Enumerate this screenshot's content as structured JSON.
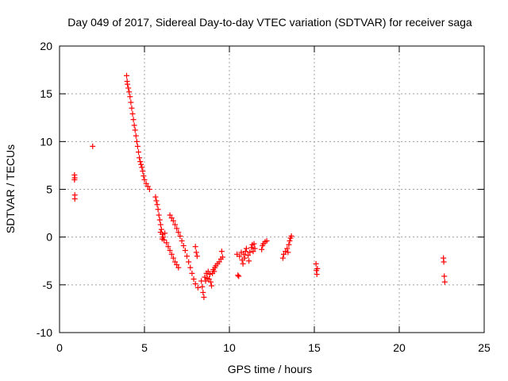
{
  "chart_data": {
    "type": "scatter",
    "title": "Day 049 of 2017, Sidereal Day-to-day VTEC variation (SDTVAR) for receiver saga",
    "xlabel": "GPS time / hours",
    "ylabel": "SDTVAR / TECUs",
    "xlim": [
      0,
      25
    ],
    "ylim": [
      -10,
      20
    ],
    "xticks": [
      0,
      5,
      10,
      15,
      20,
      25
    ],
    "yticks": [
      -10,
      -5,
      0,
      5,
      10,
      15,
      20
    ],
    "grid": true,
    "marker": "+",
    "color": "#ff0000",
    "series": [
      {
        "name": "SDTVAR",
        "points": [
          [
            0.88,
            6.5
          ],
          [
            0.88,
            6.0
          ],
          [
            0.9,
            6.2
          ],
          [
            0.9,
            4.4
          ],
          [
            0.9,
            4.0
          ],
          [
            1.95,
            9.5
          ],
          [
            3.95,
            16.9
          ],
          [
            3.98,
            16.3
          ],
          [
            4.0,
            16.0
          ],
          [
            4.05,
            15.6
          ],
          [
            4.1,
            15.2
          ],
          [
            4.15,
            14.7
          ],
          [
            4.2,
            14.1
          ],
          [
            4.25,
            13.5
          ],
          [
            4.3,
            12.9
          ],
          [
            4.35,
            12.3
          ],
          [
            4.4,
            11.7
          ],
          [
            4.45,
            11.2
          ],
          [
            4.5,
            10.6
          ],
          [
            4.55,
            10.0
          ],
          [
            4.6,
            9.5
          ],
          [
            4.65,
            8.9
          ],
          [
            4.7,
            8.3
          ],
          [
            4.75,
            7.9
          ],
          [
            4.8,
            7.6
          ],
          [
            4.85,
            7.3
          ],
          [
            4.9,
            6.9
          ],
          [
            4.95,
            6.4
          ],
          [
            5.0,
            6.0
          ],
          [
            5.1,
            5.6
          ],
          [
            5.2,
            5.3
          ],
          [
            5.3,
            5.0
          ],
          [
            5.65,
            4.2
          ],
          [
            5.7,
            3.8
          ],
          [
            5.75,
            3.4
          ],
          [
            5.8,
            2.9
          ],
          [
            5.85,
            2.3
          ],
          [
            5.9,
            1.8
          ],
          [
            5.95,
            1.3
          ],
          [
            6.0,
            0.8
          ],
          [
            6.05,
            0.3
          ],
          [
            6.1,
            0.0
          ],
          [
            6.15,
            -0.3
          ],
          [
            5.95,
            0.5
          ],
          [
            6.05,
            -0.2
          ],
          [
            6.2,
            0.4
          ],
          [
            6.3,
            -0.6
          ],
          [
            6.4,
            -1.0
          ],
          [
            6.5,
            -1.4
          ],
          [
            6.6,
            -1.8
          ],
          [
            6.7,
            -2.2
          ],
          [
            6.8,
            -2.6
          ],
          [
            6.9,
            -2.9
          ],
          [
            7.0,
            -3.2
          ],
          [
            6.5,
            2.3
          ],
          [
            6.6,
            2.0
          ],
          [
            6.7,
            1.7
          ],
          [
            6.8,
            1.3
          ],
          [
            6.9,
            0.9
          ],
          [
            7.0,
            0.5
          ],
          [
            7.1,
            0.1
          ],
          [
            7.2,
            -0.4
          ],
          [
            7.3,
            -0.9
          ],
          [
            7.4,
            -1.4
          ],
          [
            7.5,
            -2.0
          ],
          [
            7.6,
            -2.6
          ],
          [
            7.7,
            -3.2
          ],
          [
            7.8,
            -3.8
          ],
          [
            7.9,
            -4.4
          ],
          [
            8.0,
            -4.9
          ],
          [
            8.0,
            -1.0
          ],
          [
            8.05,
            -1.6
          ],
          [
            8.1,
            -2.0
          ],
          [
            8.15,
            -5.3
          ],
          [
            8.35,
            -4.6
          ],
          [
            8.4,
            -5.2
          ],
          [
            8.45,
            -5.8
          ],
          [
            8.5,
            -6.3
          ],
          [
            8.55,
            -4.2
          ],
          [
            8.6,
            -4.6
          ],
          [
            8.65,
            -3.8
          ],
          [
            8.7,
            -4.3
          ],
          [
            8.75,
            -3.6
          ],
          [
            8.8,
            -4.4
          ],
          [
            8.85,
            -3.9
          ],
          [
            8.9,
            -4.7
          ],
          [
            8.95,
            -5.1
          ],
          [
            9.0,
            -3.8
          ],
          [
            9.05,
            -3.4
          ],
          [
            9.1,
            -3.6
          ],
          [
            9.15,
            -3.2
          ],
          [
            9.2,
            -3.0
          ],
          [
            9.3,
            -2.8
          ],
          [
            9.4,
            -2.6
          ],
          [
            9.5,
            -2.3
          ],
          [
            9.55,
            -1.5
          ],
          [
            9.6,
            -2.1
          ],
          [
            10.45,
            -1.8
          ],
          [
            10.5,
            -4.0
          ],
          [
            10.55,
            -4.1
          ],
          [
            10.6,
            -2.0
          ],
          [
            10.7,
            -1.6
          ],
          [
            10.75,
            -2.4
          ],
          [
            10.8,
            -2.8
          ],
          [
            10.85,
            -1.8
          ],
          [
            10.9,
            -2.2
          ],
          [
            10.95,
            -1.5
          ],
          [
            11.0,
            -1.2
          ],
          [
            11.1,
            -1.9
          ],
          [
            11.15,
            -2.5
          ],
          [
            11.2,
            -1.6
          ],
          [
            11.3,
            -1.1
          ],
          [
            11.35,
            -0.8
          ],
          [
            11.4,
            -1.5
          ],
          [
            11.45,
            -0.7
          ],
          [
            11.5,
            -1.2
          ],
          [
            11.9,
            -1.3
          ],
          [
            11.95,
            -0.9
          ],
          [
            12.0,
            -0.7
          ],
          [
            12.1,
            -0.5
          ],
          [
            12.2,
            -0.4
          ],
          [
            13.15,
            -2.2
          ],
          [
            13.2,
            -1.8
          ],
          [
            13.3,
            -1.5
          ],
          [
            13.4,
            -1.2
          ],
          [
            13.45,
            -1.6
          ],
          [
            13.5,
            -0.8
          ],
          [
            13.55,
            -0.4
          ],
          [
            13.6,
            -0.1
          ],
          [
            13.65,
            0.1
          ],
          [
            15.1,
            -2.8
          ],
          [
            15.12,
            -3.5
          ],
          [
            15.15,
            -3.9
          ],
          [
            15.18,
            -3.3
          ],
          [
            22.6,
            -2.2
          ],
          [
            22.62,
            -2.6
          ],
          [
            22.65,
            -4.1
          ],
          [
            22.68,
            -4.7
          ]
        ]
      }
    ]
  }
}
